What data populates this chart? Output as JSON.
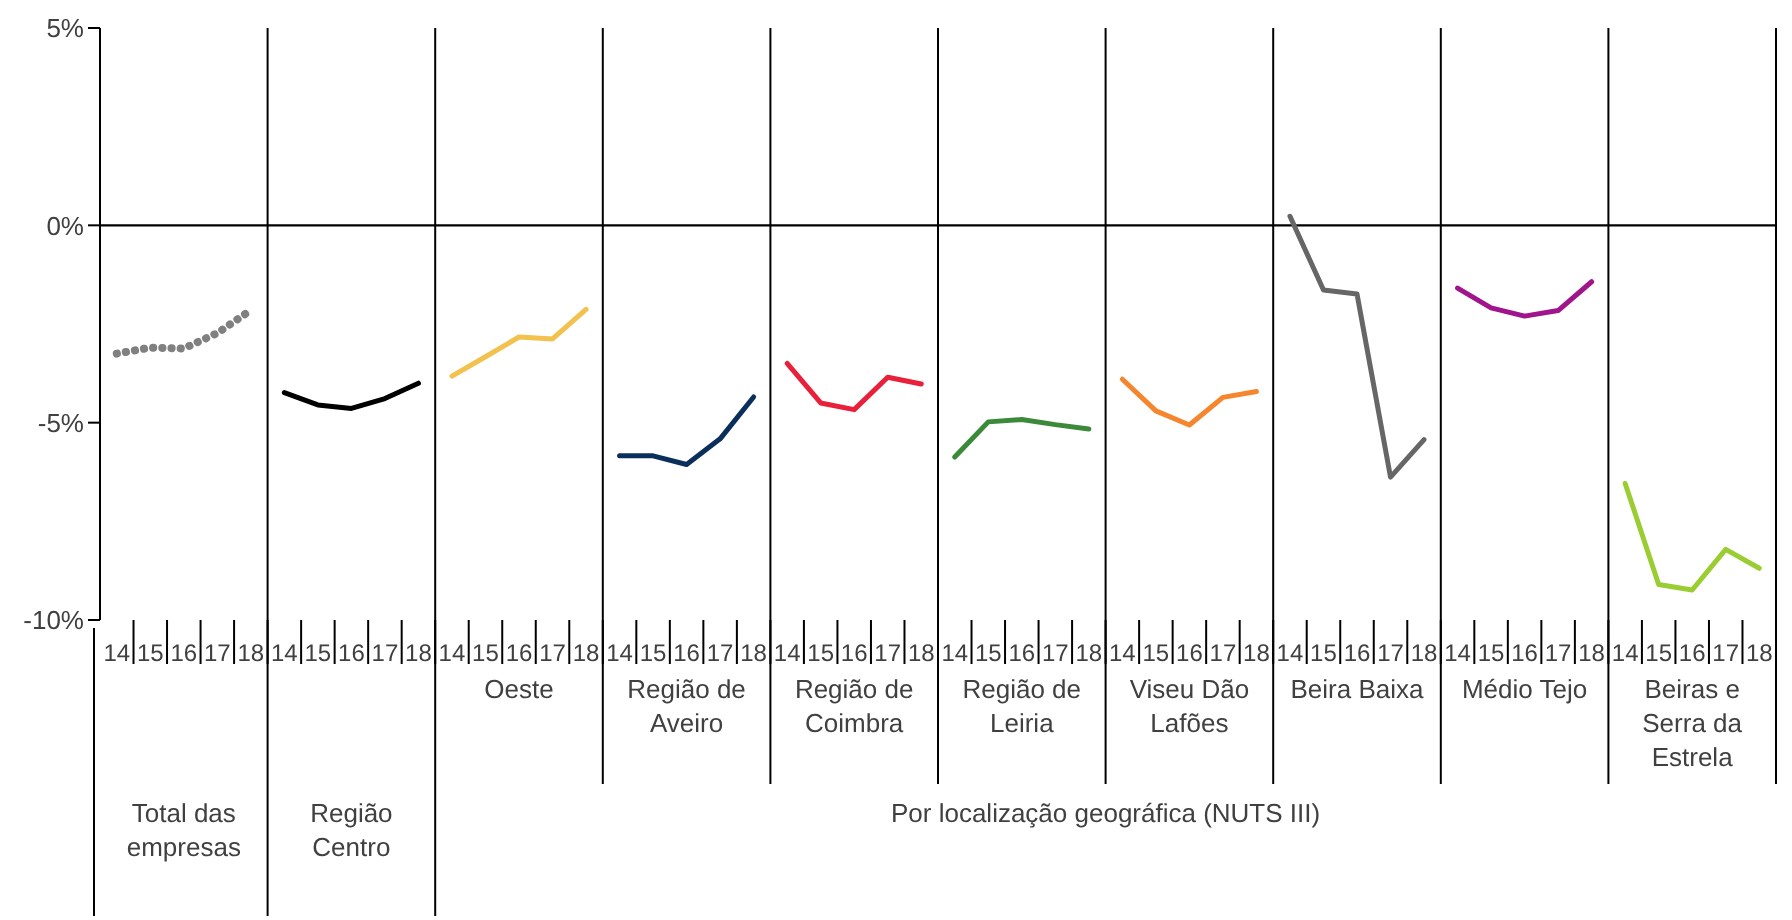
{
  "chart_data": {
    "type": "line",
    "categories": [
      "14",
      "15",
      "16",
      "17",
      "18",
      "14",
      "15",
      "16",
      "17",
      "18",
      "14",
      "15",
      "16",
      "17",
      "18",
      "14",
      "15",
      "16",
      "17",
      "18",
      "14",
      "15",
      "16",
      "17",
      "18",
      "14",
      "15",
      "16",
      "17",
      "18",
      "14",
      "15",
      "16",
      "17",
      "18",
      "14",
      "15",
      "16",
      "17",
      "18",
      "14",
      "15",
      "16",
      "17",
      "18",
      "14",
      "15",
      "16",
      "17",
      "18"
    ],
    "series": [
      {
        "color": "#808080",
        "line_style": "dotted",
        "values": [
          -3.25,
          -3.1,
          -3.12,
          -2.73,
          -2.15,
          null,
          null,
          null,
          null,
          null,
          null,
          null,
          null,
          null,
          null,
          null,
          null,
          null,
          null,
          null,
          null,
          null,
          null,
          null,
          null,
          null,
          null,
          null,
          null,
          null,
          null,
          null,
          null,
          null,
          null,
          null,
          null,
          null,
          null,
          null,
          null,
          null,
          null,
          null,
          null,
          null,
          null,
          null,
          null,
          null
        ]
      },
      {
        "color": "#000000",
        "values": [
          null,
          null,
          null,
          null,
          null,
          -4.24,
          -4.55,
          -4.64,
          -4.39,
          -4.0,
          null,
          null,
          null,
          null,
          null,
          null,
          null,
          null,
          null,
          null,
          null,
          null,
          null,
          null,
          null,
          null,
          null,
          null,
          null,
          null,
          null,
          null,
          null,
          null,
          null,
          null,
          null,
          null,
          null,
          null,
          null,
          null,
          null,
          null,
          null,
          null,
          null,
          null,
          null,
          null
        ]
      },
      {
        "color": "#f2c14e",
        "values": [
          null,
          null,
          null,
          null,
          null,
          null,
          null,
          null,
          null,
          null,
          -3.82,
          -3.33,
          -2.83,
          -2.88,
          -2.13,
          null,
          null,
          null,
          null,
          null,
          null,
          null,
          null,
          null,
          null,
          null,
          null,
          null,
          null,
          null,
          null,
          null,
          null,
          null,
          null,
          null,
          null,
          null,
          null,
          null,
          null,
          null,
          null,
          null,
          null,
          null,
          null,
          null,
          null,
          null
        ]
      },
      {
        "color": "#0b2f5b",
        "values": [
          null,
          null,
          null,
          null,
          null,
          null,
          null,
          null,
          null,
          null,
          null,
          null,
          null,
          null,
          null,
          -5.84,
          -5.84,
          -6.06,
          -5.41,
          -4.35,
          null,
          null,
          null,
          null,
          null,
          null,
          null,
          null,
          null,
          null,
          null,
          null,
          null,
          null,
          null,
          null,
          null,
          null,
          null,
          null,
          null,
          null,
          null,
          null,
          null,
          null,
          null,
          null,
          null,
          null
        ]
      },
      {
        "color": "#e8203a",
        "values": [
          null,
          null,
          null,
          null,
          null,
          null,
          null,
          null,
          null,
          null,
          null,
          null,
          null,
          null,
          null,
          null,
          null,
          null,
          null,
          null,
          -3.5,
          -4.5,
          -4.67,
          -3.85,
          -4.02,
          null,
          null,
          null,
          null,
          null,
          null,
          null,
          null,
          null,
          null,
          null,
          null,
          null,
          null,
          null,
          null,
          null,
          null,
          null,
          null,
          null,
          null,
          null,
          null,
          null
        ]
      },
      {
        "color": "#3a8a3a",
        "values": [
          null,
          null,
          null,
          null,
          null,
          null,
          null,
          null,
          null,
          null,
          null,
          null,
          null,
          null,
          null,
          null,
          null,
          null,
          null,
          null,
          null,
          null,
          null,
          null,
          null,
          -5.87,
          -4.98,
          -4.92,
          -5.05,
          -5.16,
          null,
          null,
          null,
          null,
          null,
          null,
          null,
          null,
          null,
          null,
          null,
          null,
          null,
          null,
          null,
          null,
          null,
          null,
          null,
          null
        ]
      },
      {
        "color": "#f5862e",
        "values": [
          null,
          null,
          null,
          null,
          null,
          null,
          null,
          null,
          null,
          null,
          null,
          null,
          null,
          null,
          null,
          null,
          null,
          null,
          null,
          null,
          null,
          null,
          null,
          null,
          null,
          null,
          null,
          null,
          null,
          null,
          -3.9,
          -4.7,
          -5.06,
          -4.36,
          -4.21,
          null,
          null,
          null,
          null,
          null,
          null,
          null,
          null,
          null,
          null,
          null,
          null,
          null,
          null,
          null
        ]
      },
      {
        "color": "#666666",
        "values": [
          null,
          null,
          null,
          null,
          null,
          null,
          null,
          null,
          null,
          null,
          null,
          null,
          null,
          null,
          null,
          null,
          null,
          null,
          null,
          null,
          null,
          null,
          null,
          null,
          null,
          null,
          null,
          null,
          null,
          null,
          null,
          null,
          null,
          null,
          null,
          0.23,
          -1.64,
          -1.74,
          -6.38,
          -5.43,
          null,
          null,
          null,
          null,
          null,
          null,
          null,
          null,
          null,
          null
        ]
      },
      {
        "color": "#a0148c",
        "values": [
          null,
          null,
          null,
          null,
          null,
          null,
          null,
          null,
          null,
          null,
          null,
          null,
          null,
          null,
          null,
          null,
          null,
          null,
          null,
          null,
          null,
          null,
          null,
          null,
          null,
          null,
          null,
          null,
          null,
          null,
          null,
          null,
          null,
          null,
          null,
          null,
          null,
          null,
          null,
          null,
          -1.59,
          -2.09,
          -2.3,
          -2.16,
          -1.43,
          null,
          null,
          null,
          null,
          null
        ]
      },
      {
        "color": "#9acd32",
        "values": [
          null,
          null,
          null,
          null,
          null,
          null,
          null,
          null,
          null,
          null,
          null,
          null,
          null,
          null,
          null,
          null,
          null,
          null,
          null,
          null,
          null,
          null,
          null,
          null,
          null,
          null,
          null,
          null,
          null,
          null,
          null,
          null,
          null,
          null,
          null,
          null,
          null,
          null,
          null,
          null,
          null,
          null,
          null,
          null,
          null,
          -6.54,
          -9.1,
          -9.24,
          -8.21,
          -8.69
        ]
      }
    ],
    "ylim": [
      -10,
      5
    ],
    "yticks": [
      {
        "value": 5,
        "label": "5%"
      },
      {
        "value": 0,
        "label": "0%"
      },
      {
        "value": -5,
        "label": "-5%"
      },
      {
        "value": -10,
        "label": "-10%"
      }
    ],
    "ref_lines": [
      {
        "axis": "y",
        "value": 0
      }
    ],
    "annotations": [
      "Oeste",
      "Região de Aveiro",
      "Região de Coimbra",
      "Região de Leiria",
      "Viseu Dão Lafões",
      "Beira Baixa",
      "Médio Tejo",
      "Beiras e Serra da Estrela",
      "Total das empresas",
      "Região Centro",
      "Por localização geográfica (NUTS III)"
    ]
  }
}
